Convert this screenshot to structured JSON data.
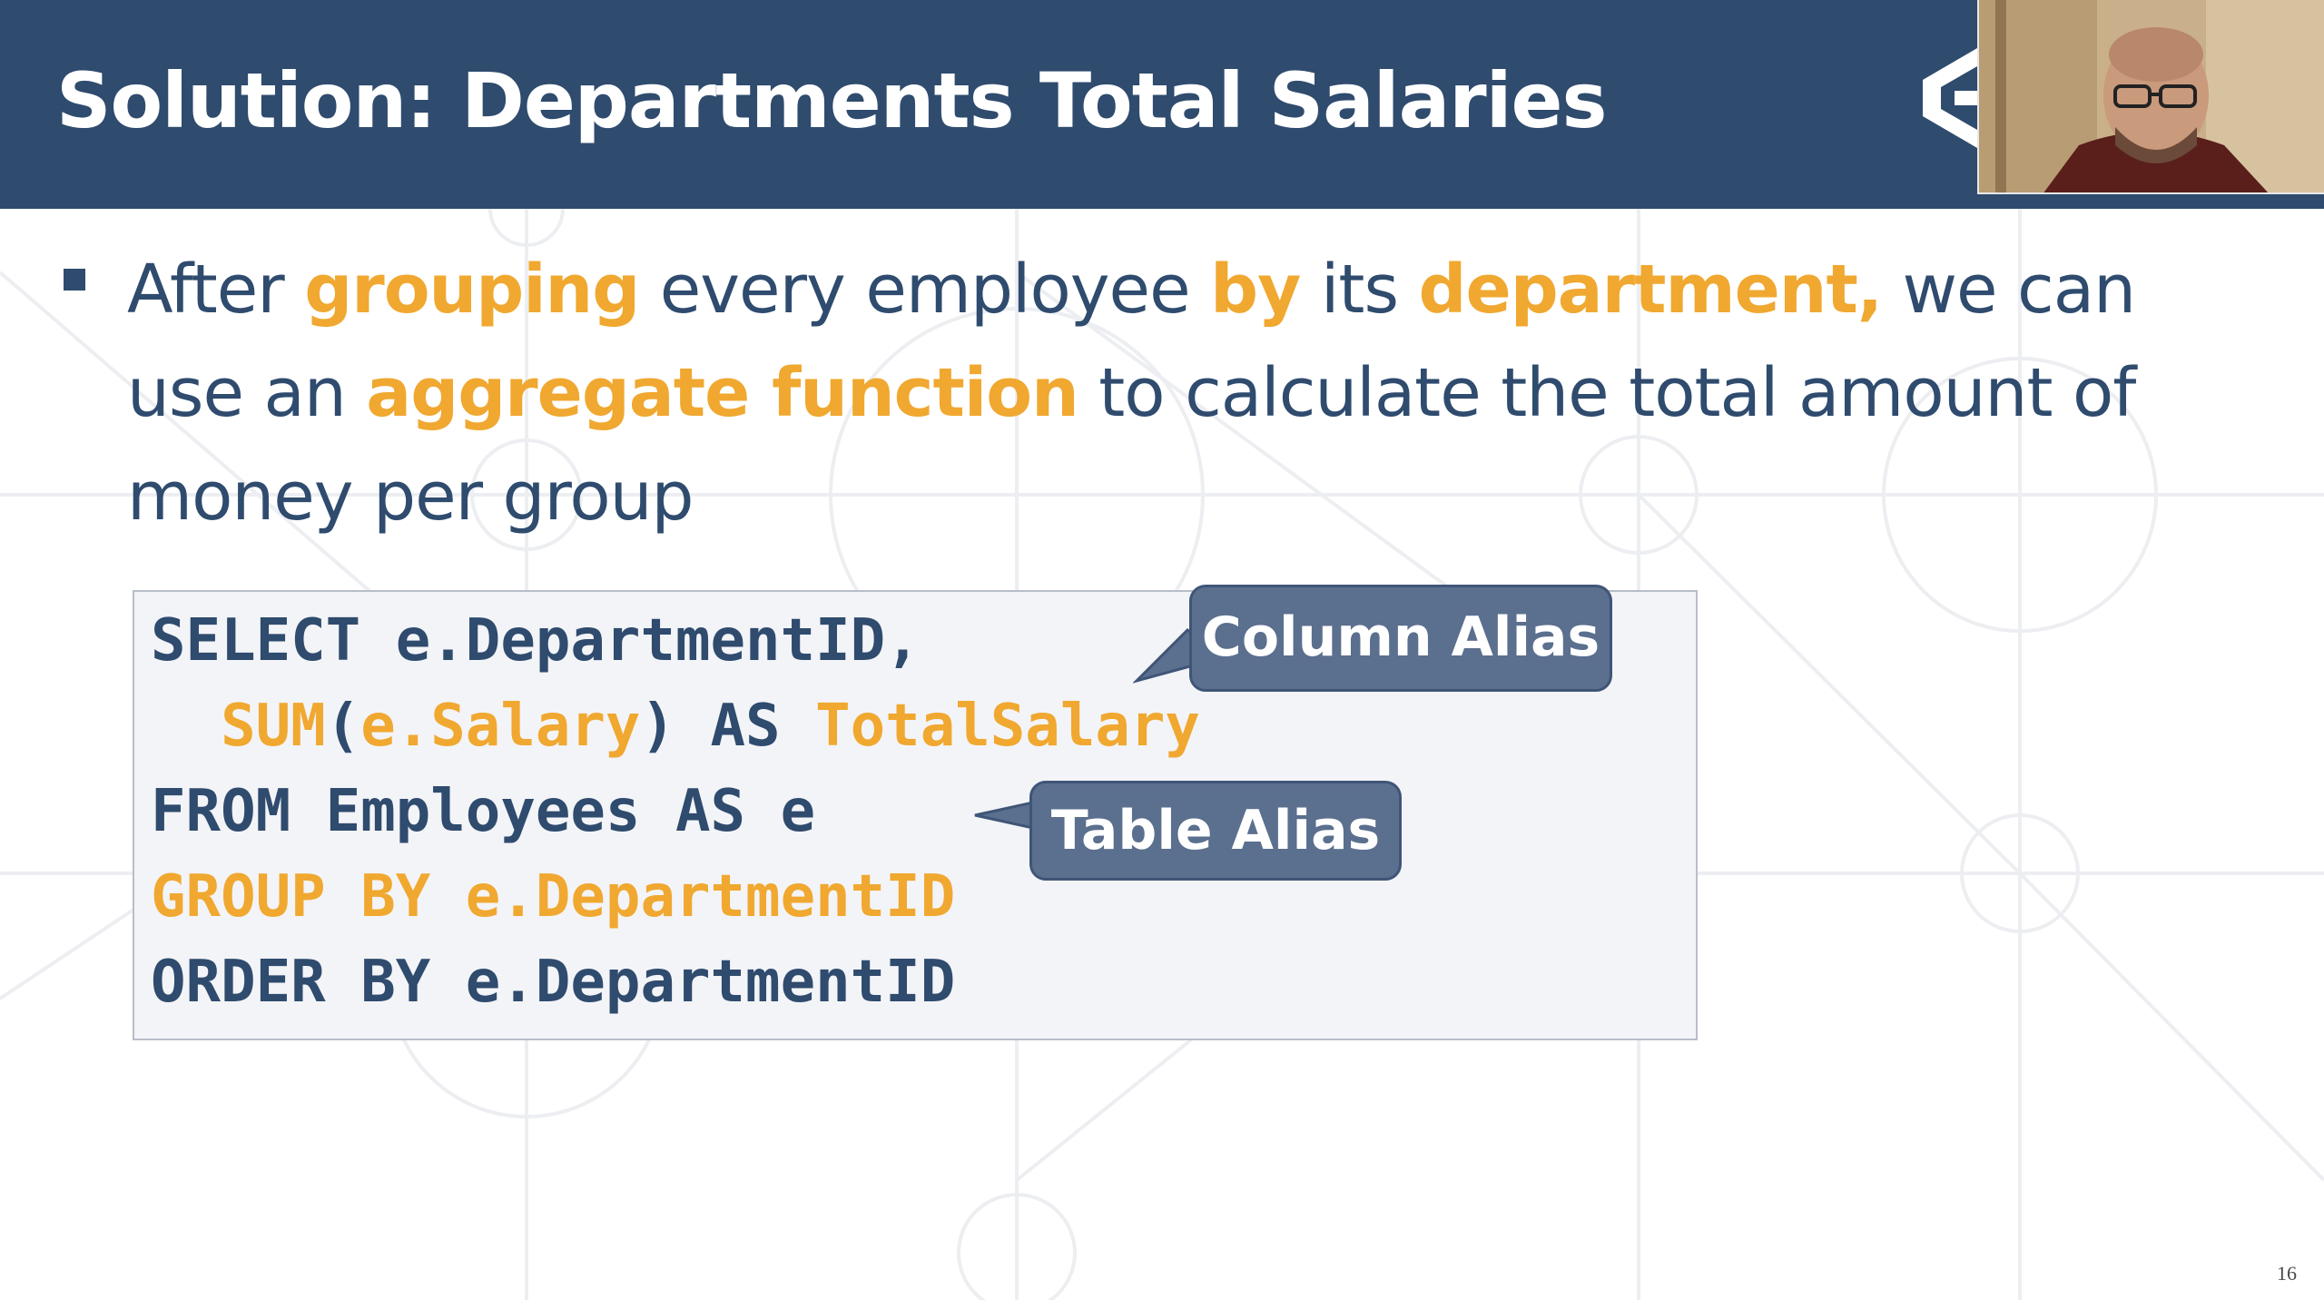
{
  "slide": {
    "title": "Solution: Departments Total Salaries",
    "page_number": "16",
    "colors": {
      "header_bg": "#2f4b6e",
      "text": "#2f4b6e",
      "highlight": "#f0a830",
      "callout_bg": "#5b6f8e",
      "code_bg": "#f3f4f7"
    }
  },
  "logo": {
    "icon": "softuni-logo-icon"
  },
  "webcam": {
    "description_icon": "presenter-webcam-icon"
  },
  "bullet": {
    "segments": [
      {
        "text": "After ",
        "highlight": false
      },
      {
        "text": "grouping",
        "highlight": true
      },
      {
        "text": " every employee ",
        "highlight": false
      },
      {
        "text": "by",
        "highlight": true
      },
      {
        "text": " its ",
        "highlight": false
      },
      {
        "text": "department,",
        "highlight": true
      },
      {
        "text": " we can use an ",
        "highlight": false
      },
      {
        "text": "aggregate function",
        "highlight": true
      },
      {
        "text": " to calculate the total amount of money per group",
        "highlight": false
      }
    ]
  },
  "code": {
    "lines": [
      [
        {
          "text": "SELECT e.DepartmentID,",
          "orange": false
        }
      ],
      [
        {
          "text": "  ",
          "orange": false
        },
        {
          "text": "SUM",
          "orange": true
        },
        {
          "text": "(",
          "orange": false
        },
        {
          "text": "e.Salary",
          "orange": true
        },
        {
          "text": ") AS ",
          "orange": false
        },
        {
          "text": "TotalSalary",
          "orange": true
        }
      ],
      [
        {
          "text": "FROM Employees AS e",
          "orange": false
        }
      ],
      [
        {
          "text": "GROUP BY e.DepartmentID",
          "orange": true
        }
      ],
      [
        {
          "text": "ORDER BY e.DepartmentID",
          "orange": false
        }
      ]
    ]
  },
  "callouts": {
    "column_alias": "Column Alias",
    "table_alias": "Table Alias"
  }
}
